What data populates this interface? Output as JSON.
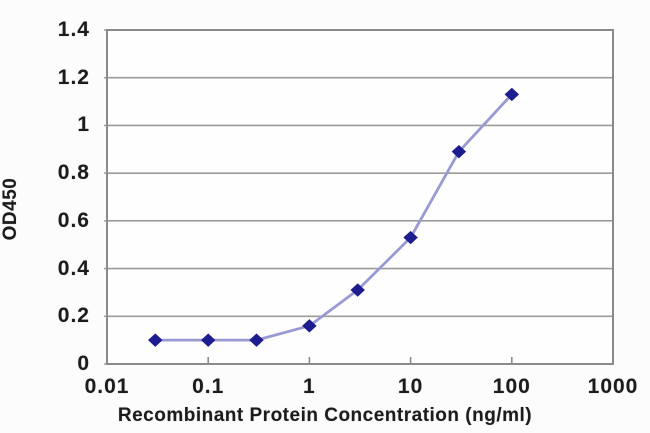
{
  "chart_data": {
    "type": "line",
    "title": "",
    "xlabel": "Recombinant Protein Concentration (ng/ml)",
    "ylabel": "OD450",
    "x_scale": "log",
    "xlim": [
      0.01,
      1000
    ],
    "ylim": [
      0,
      1.4
    ],
    "x": [
      0.03,
      0.1,
      0.3,
      1,
      3,
      10,
      30,
      100
    ],
    "y": [
      0.1,
      0.1,
      0.1,
      0.16,
      0.31,
      0.53,
      0.89,
      1.13
    ],
    "x_tick_values": [
      0.01,
      0.1,
      1,
      10,
      100,
      1000
    ],
    "x_tick_labels": [
      "0.01",
      "0.1",
      "1",
      "10",
      "100",
      "1000"
    ],
    "x_minor_tick_values": [
      0.1,
      1,
      10,
      100
    ],
    "y_tick_values": [
      0,
      0.2,
      0.4,
      0.6,
      0.8,
      1,
      1.2,
      1.4
    ],
    "y_tick_labels": [
      "0",
      "0.2",
      "0.4",
      "0.6",
      "0.8",
      "1",
      "1.2",
      "1.4"
    ],
    "grid": "horizontal",
    "legend": "none",
    "marker": "diamond",
    "colors": {
      "line": "#9a9ad2",
      "marker": "#1d1d8f",
      "grid": "#9b9b9b",
      "axis_border": "#8a8a8a",
      "text": "#1c1c1c",
      "plot_background": "#fefefe",
      "background": "#fcfcfc"
    }
  }
}
